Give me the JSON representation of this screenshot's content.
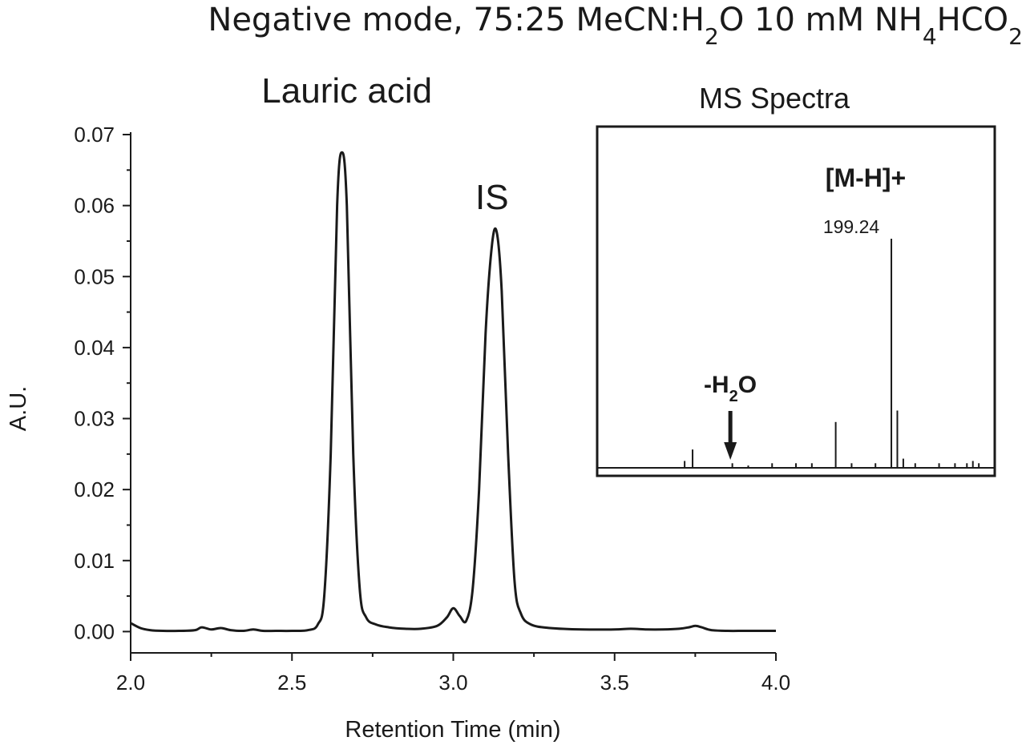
{
  "chart_data": [
    {
      "type": "line",
      "title_parts": [
        {
          "text": "Negative mode, 75:25 MeCN:H",
          "sub": false
        },
        {
          "text": "2",
          "sub": true
        },
        {
          "text": "O 10 mM NH",
          "sub": false
        },
        {
          "text": "4",
          "sub": true
        },
        {
          "text": "HCO",
          "sub": false
        },
        {
          "text": "2",
          "sub": true
        }
      ],
      "xlabel": "Retention Time (min)",
      "ylabel": "A.U.",
      "xlim": [
        2.0,
        4.0
      ],
      "ylim": [
        -0.003,
        0.07
      ],
      "x_ticks": [
        "2.0",
        "2.5",
        "3.0",
        "3.5",
        "4.0"
      ],
      "y_ticks": [
        "0.00",
        "0.01",
        "0.02",
        "0.03",
        "0.04",
        "0.05",
        "0.06",
        "0.07"
      ],
      "annotations": [
        {
          "text": "Lauric acid",
          "x": 2.67,
          "y": 0.0745
        },
        {
          "text": "IS",
          "x": 3.12,
          "y": 0.0595
        }
      ],
      "series": [
        {
          "x": [
            2.0,
            2.03,
            2.06,
            2.1,
            2.15,
            2.2,
            2.22,
            2.25,
            2.28,
            2.31,
            2.35,
            2.38,
            2.41,
            2.45,
            2.5,
            2.55,
            2.58,
            2.6,
            2.62,
            2.64,
            2.655,
            2.67,
            2.69,
            2.71,
            2.73,
            2.76,
            2.8,
            2.85,
            2.9,
            2.95,
            2.98,
            3.0,
            3.02,
            3.04,
            3.06,
            3.08,
            3.1,
            3.12,
            3.135,
            3.15,
            3.17,
            3.19,
            3.21,
            3.24,
            3.3,
            3.4,
            3.5,
            3.55,
            3.6,
            3.65,
            3.7,
            3.73,
            3.75,
            3.77,
            3.8,
            3.85,
            3.9,
            3.95,
            4.0
          ],
          "y": [
            0.0012,
            0.0005,
            0.0002,
            0.0001,
            0.0001,
            0.0002,
            0.0006,
            0.0003,
            0.0005,
            0.0002,
            0.0001,
            0.0003,
            0.0001,
            0.0001,
            0.0001,
            0.0002,
            0.001,
            0.005,
            0.025,
            0.06,
            0.0675,
            0.06,
            0.025,
            0.006,
            0.002,
            0.001,
            0.0006,
            0.0004,
            0.0004,
            0.0008,
            0.002,
            0.0033,
            0.0022,
            0.0015,
            0.006,
            0.02,
            0.042,
            0.0545,
            0.0562,
            0.048,
            0.025,
            0.007,
            0.0025,
            0.001,
            0.0005,
            0.0003,
            0.0003,
            0.0004,
            0.0003,
            0.0003,
            0.0004,
            0.0006,
            0.0008,
            0.0006,
            0.0002,
            0.0001,
            0.0001,
            0.0001,
            0.0001
          ]
        }
      ]
    },
    {
      "type": "bar",
      "title": "MS Spectra",
      "peak_label": "[M-H]+",
      "peak_value_label": "199.24",
      "loss_label_parts": [
        {
          "text": "-H",
          "sub": false
        },
        {
          "text": "2",
          "sub": true
        },
        {
          "text": "O",
          "sub": false
        }
      ],
      "peaks": [
        {
          "pos": 0.22,
          "h": 0.03
        },
        {
          "pos": 0.24,
          "h": 0.08
        },
        {
          "pos": 0.34,
          "h": 0.02
        },
        {
          "pos": 0.38,
          "h": 0.01
        },
        {
          "pos": 0.44,
          "h": 0.02
        },
        {
          "pos": 0.5,
          "h": 0.02
        },
        {
          "pos": 0.54,
          "h": 0.02
        },
        {
          "pos": 0.6,
          "h": 0.2
        },
        {
          "pos": 0.64,
          "h": 0.02
        },
        {
          "pos": 0.7,
          "h": 0.02
        },
        {
          "pos": 0.74,
          "h": 1.0
        },
        {
          "pos": 0.755,
          "h": 0.25
        },
        {
          "pos": 0.77,
          "h": 0.04
        },
        {
          "pos": 0.8,
          "h": 0.02
        },
        {
          "pos": 0.86,
          "h": 0.02
        },
        {
          "pos": 0.9,
          "h": 0.02
        },
        {
          "pos": 0.93,
          "h": 0.02
        },
        {
          "pos": 0.945,
          "h": 0.03
        },
        {
          "pos": 0.96,
          "h": 0.02
        }
      ],
      "arrow_pos": 0.335
    }
  ]
}
